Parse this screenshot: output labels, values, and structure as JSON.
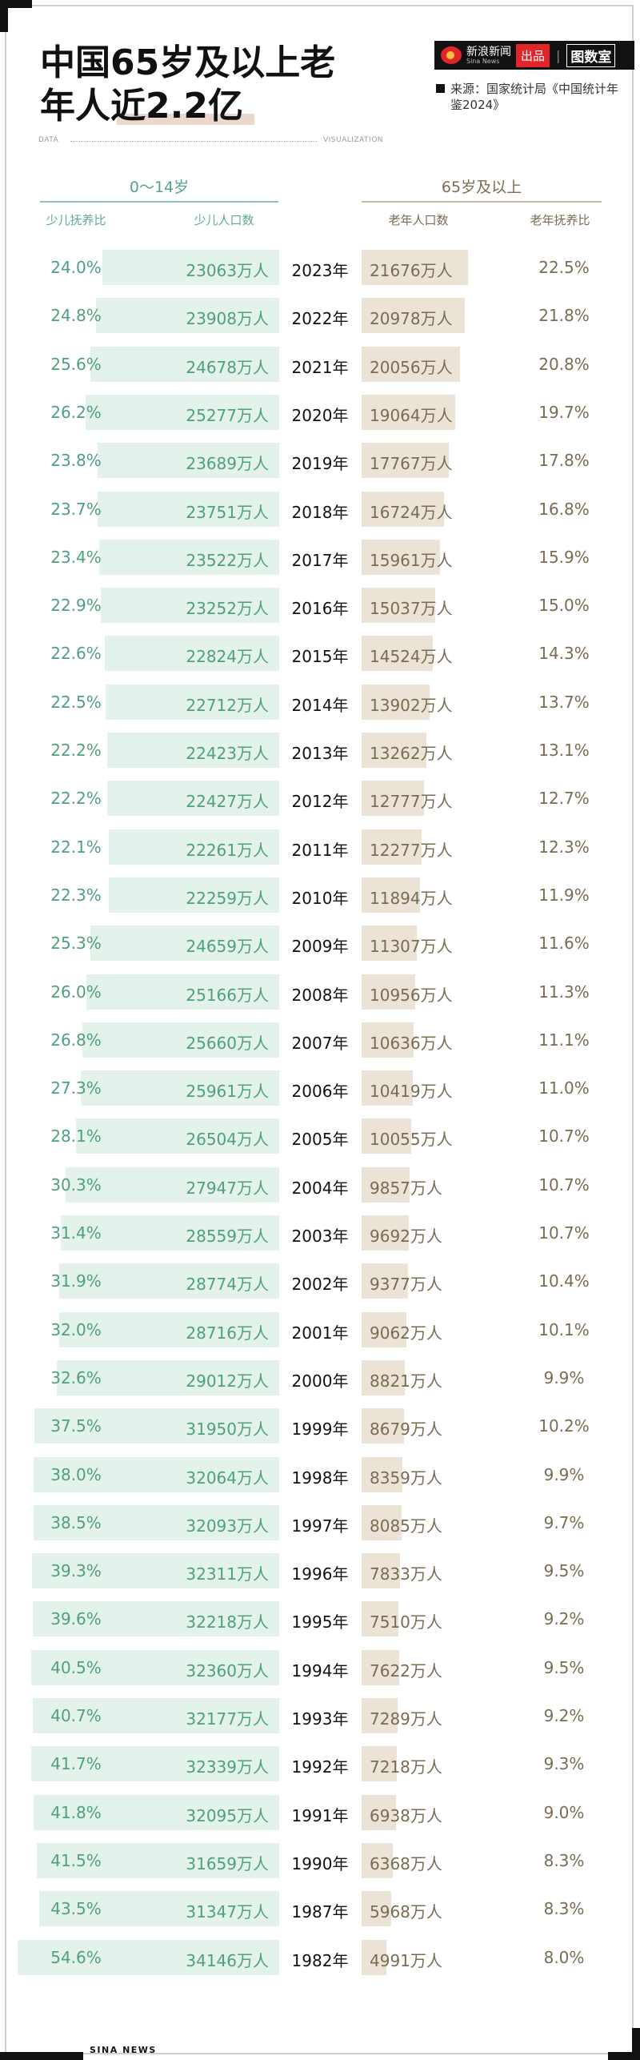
{
  "title_line1": "中国65岁及以上老",
  "title_line2": "年人近2.2亿",
  "brand": {
    "name": "新浪新闻",
    "sub": "Sina News",
    "badge": "出品",
    "column": "图数室"
  },
  "source": "来源：国家统计局《中国统计年鉴2024》",
  "label_data": "DATA",
  "label_vis": "VISUALIZATION",
  "footer": "SINA NEWS",
  "colors": {
    "young": "#4fa07b",
    "young_bar": "#e3f2ea",
    "old": "#7a6c52",
    "old_bar": "#ebe3d6"
  },
  "chart_data": {
    "type": "table",
    "group_young": "0～14岁",
    "group_old": "65岁及以上",
    "columns": [
      "少儿抚养比",
      "少儿人口数",
      "老年人口数",
      "老年抚养比"
    ],
    "rows": [
      {
        "year": "2023年",
        "young_ratio": "24.0%",
        "young_pop": "23063万人",
        "old_pop": "21676万人",
        "old_ratio": "22.5%"
      },
      {
        "year": "2022年",
        "young_ratio": "24.8%",
        "young_pop": "23908万人",
        "old_pop": "20978万人",
        "old_ratio": "21.8%"
      },
      {
        "year": "2021年",
        "young_ratio": "25.6%",
        "young_pop": "24678万人",
        "old_pop": "20056万人",
        "old_ratio": "20.8%"
      },
      {
        "year": "2020年",
        "young_ratio": "26.2%",
        "young_pop": "25277万人",
        "old_pop": "19064万人",
        "old_ratio": "19.7%"
      },
      {
        "year": "2019年",
        "young_ratio": "23.8%",
        "young_pop": "23689万人",
        "old_pop": "17767万人",
        "old_ratio": "17.8%"
      },
      {
        "year": "2018年",
        "young_ratio": "23.7%",
        "young_pop": "23751万人",
        "old_pop": "16724万人",
        "old_ratio": "16.8%"
      },
      {
        "year": "2017年",
        "young_ratio": "23.4%",
        "young_pop": "23522万人",
        "old_pop": "15961万人",
        "old_ratio": "15.9%"
      },
      {
        "year": "2016年",
        "young_ratio": "22.9%",
        "young_pop": "23252万人",
        "old_pop": "15037万人",
        "old_ratio": "15.0%"
      },
      {
        "year": "2015年",
        "young_ratio": "22.6%",
        "young_pop": "22824万人",
        "old_pop": "14524万人",
        "old_ratio": "14.3%"
      },
      {
        "year": "2014年",
        "young_ratio": "22.5%",
        "young_pop": "22712万人",
        "old_pop": "13902万人",
        "old_ratio": "13.7%"
      },
      {
        "year": "2013年",
        "young_ratio": "22.2%",
        "young_pop": "22423万人",
        "old_pop": "13262万人",
        "old_ratio": "13.1%"
      },
      {
        "year": "2012年",
        "young_ratio": "22.2%",
        "young_pop": "22427万人",
        "old_pop": "12777万人",
        "old_ratio": "12.7%"
      },
      {
        "year": "2011年",
        "young_ratio": "22.1%",
        "young_pop": "22261万人",
        "old_pop": "12277万人",
        "old_ratio": "12.3%"
      },
      {
        "year": "2010年",
        "young_ratio": "22.3%",
        "young_pop": "22259万人",
        "old_pop": "11894万人",
        "old_ratio": "11.9%"
      },
      {
        "year": "2009年",
        "young_ratio": "25.3%",
        "young_pop": "24659万人",
        "old_pop": "11307万人",
        "old_ratio": "11.6%"
      },
      {
        "year": "2008年",
        "young_ratio": "26.0%",
        "young_pop": "25166万人",
        "old_pop": "10956万人",
        "old_ratio": "11.3%"
      },
      {
        "year": "2007年",
        "young_ratio": "26.8%",
        "young_pop": "25660万人",
        "old_pop": "10636万人",
        "old_ratio": "11.1%"
      },
      {
        "year": "2006年",
        "young_ratio": "27.3%",
        "young_pop": "25961万人",
        "old_pop": "10419万人",
        "old_ratio": "11.0%"
      },
      {
        "year": "2005年",
        "young_ratio": "28.1%",
        "young_pop": "26504万人",
        "old_pop": "10055万人",
        "old_ratio": "10.7%"
      },
      {
        "year": "2004年",
        "young_ratio": "30.3%",
        "young_pop": "27947万人",
        "old_pop": "9857万人",
        "old_ratio": "10.7%"
      },
      {
        "year": "2003年",
        "young_ratio": "31.4%",
        "young_pop": "28559万人",
        "old_pop": "9692万人",
        "old_ratio": "10.7%"
      },
      {
        "year": "2002年",
        "young_ratio": "31.9%",
        "young_pop": "28774万人",
        "old_pop": "9377万人",
        "old_ratio": "10.4%"
      },
      {
        "year": "2001年",
        "young_ratio": "32.0%",
        "young_pop": "28716万人",
        "old_pop": "9062万人",
        "old_ratio": "10.1%"
      },
      {
        "year": "2000年",
        "young_ratio": "32.6%",
        "young_pop": "29012万人",
        "old_pop": "8821万人",
        "old_ratio": "9.9%"
      },
      {
        "year": "1999年",
        "young_ratio": "37.5%",
        "young_pop": "31950万人",
        "old_pop": "8679万人",
        "old_ratio": "10.2%"
      },
      {
        "year": "1998年",
        "young_ratio": "38.0%",
        "young_pop": "32064万人",
        "old_pop": "8359万人",
        "old_ratio": "9.9%"
      },
      {
        "year": "1997年",
        "young_ratio": "38.5%",
        "young_pop": "32093万人",
        "old_pop": "8085万人",
        "old_ratio": "9.7%"
      },
      {
        "year": "1996年",
        "young_ratio": "39.3%",
        "young_pop": "32311万人",
        "old_pop": "7833万人",
        "old_ratio": "9.5%"
      },
      {
        "year": "1995年",
        "young_ratio": "39.6%",
        "young_pop": "32218万人",
        "old_pop": "7510万人",
        "old_ratio": "9.2%"
      },
      {
        "year": "1994年",
        "young_ratio": "40.5%",
        "young_pop": "32360万人",
        "old_pop": "7622万人",
        "old_ratio": "9.5%"
      },
      {
        "year": "1993年",
        "young_ratio": "40.7%",
        "young_pop": "32177万人",
        "old_pop": "7289万人",
        "old_ratio": "9.2%"
      },
      {
        "year": "1992年",
        "young_ratio": "41.7%",
        "young_pop": "32339万人",
        "old_pop": "7218万人",
        "old_ratio": "9.3%"
      },
      {
        "year": "1991年",
        "young_ratio": "41.8%",
        "young_pop": "32095万人",
        "old_pop": "6938万人",
        "old_ratio": "9.0%"
      },
      {
        "year": "1990年",
        "young_ratio": "41.5%",
        "young_pop": "31659万人",
        "old_pop": "6368万人",
        "old_ratio": "8.3%"
      },
      {
        "year": "1987年",
        "young_ratio": "43.5%",
        "young_pop": "31347万人",
        "old_pop": "5968万人",
        "old_ratio": "8.3%"
      },
      {
        "year": "1982年",
        "young_ratio": "54.6%",
        "young_pop": "34146万人",
        "old_pop": "4991万人",
        "old_ratio": "8.0%"
      }
    ]
  }
}
